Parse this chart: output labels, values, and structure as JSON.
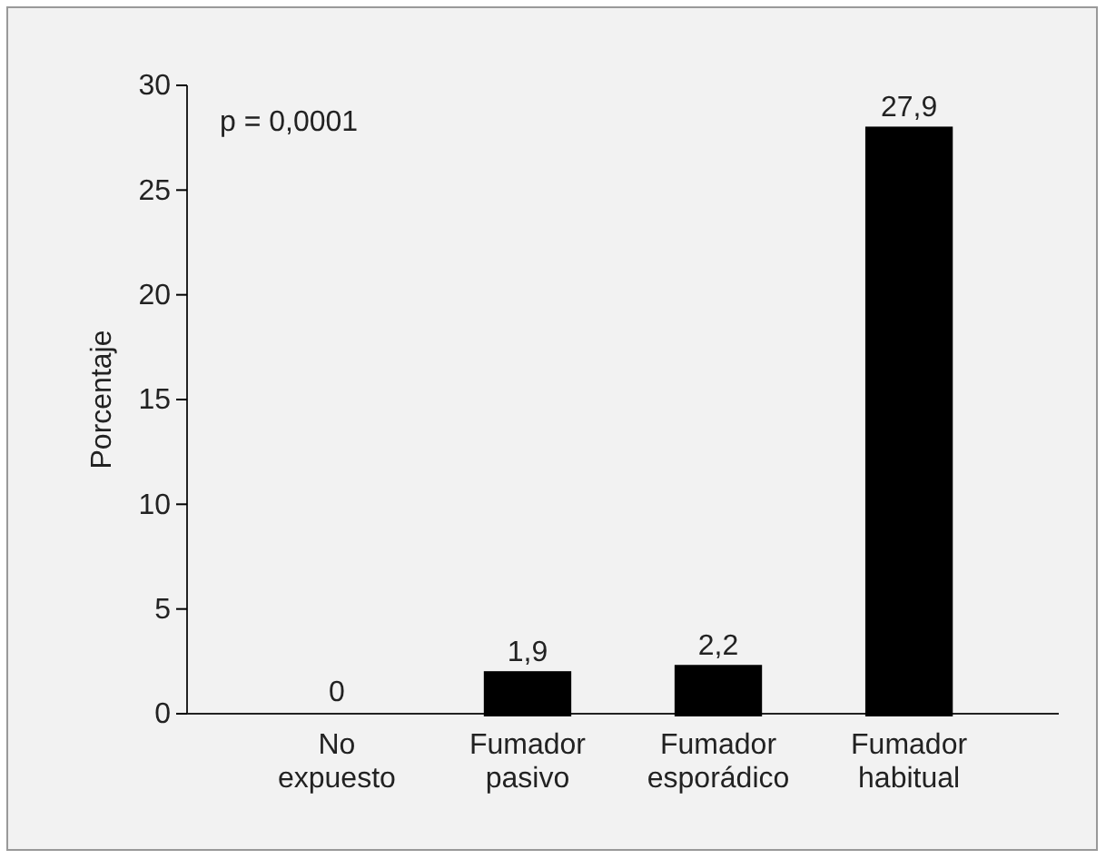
{
  "chart_data": {
    "type": "bar",
    "ylabel": "Porcentaje",
    "categories": [
      "No\nexpuesto",
      "Fumador\npasivo",
      "Fumador\nesporádico",
      "Fumador\nhabitual"
    ],
    "values": [
      0,
      1.9,
      2.2,
      27.9
    ],
    "value_labels": [
      "0",
      "1,9",
      "2,2",
      "27,9"
    ],
    "color": "#000000",
    "ylim": [
      0,
      30
    ],
    "yticks": [
      0,
      5,
      10,
      15,
      20,
      25,
      30
    ],
    "grid": false,
    "annotations": [
      "p = 0,0001"
    ]
  }
}
